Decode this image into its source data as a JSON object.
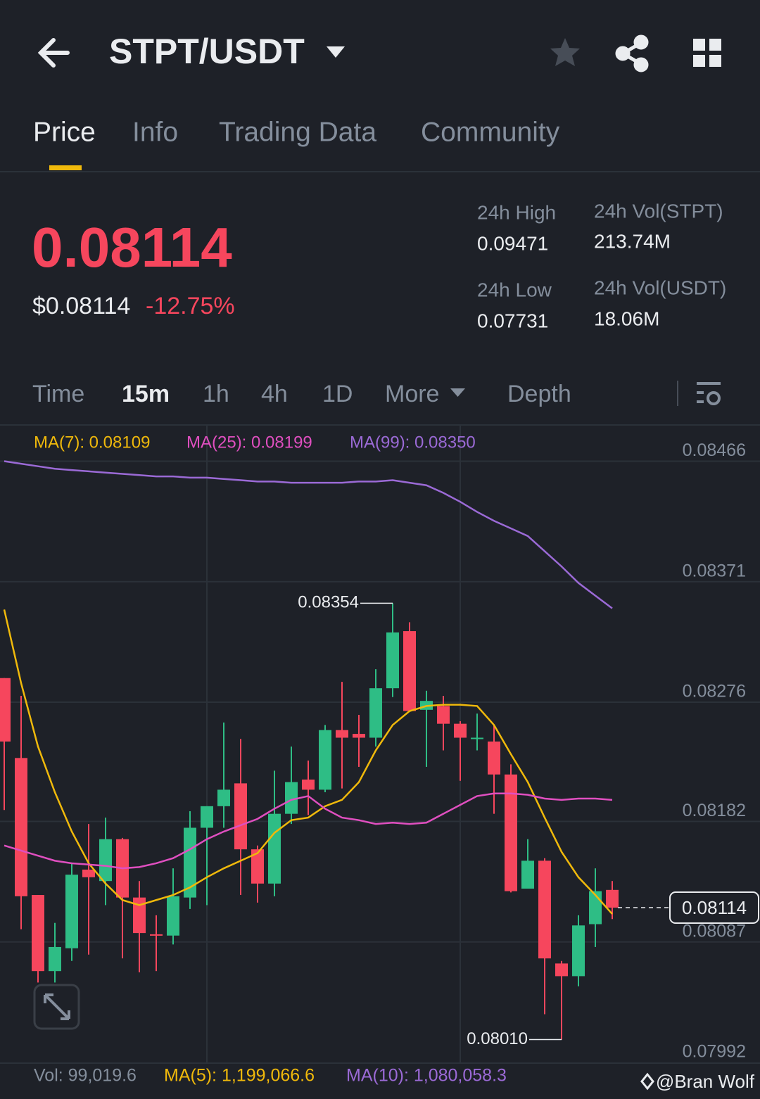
{
  "header": {
    "pair": "STPT/USDT"
  },
  "tabs": [
    "Price",
    "Info",
    "Trading Data",
    "Community"
  ],
  "price": {
    "last": "0.08114",
    "usd": "$0.08114",
    "change": "-12.75%"
  },
  "stats": [
    {
      "label": "24h High",
      "value": "0.09471"
    },
    {
      "label": "24h Vol(STPT)",
      "value": "213.74M"
    },
    {
      "label": "24h Low",
      "value": "0.07731"
    },
    {
      "label": "24h Vol(USDT)",
      "value": "18.06M"
    }
  ],
  "intervals": [
    "Time",
    "15m",
    "1h",
    "4h",
    "1D",
    "More",
    "Depth"
  ],
  "chart_data": {
    "type": "candlestick",
    "categories": [
      null,
      null,
      null,
      null,
      null,
      null,
      null,
      null,
      null,
      null,
      null,
      null,
      null,
      null,
      null,
      null,
      null,
      null,
      null,
      null,
      null,
      null,
      null,
      null,
      null,
      null,
      null,
      null,
      null,
      null,
      null,
      null,
      null,
      null,
      null,
      null,
      null
    ],
    "open": [
      0.08295,
      0.08232,
      0.08124,
      0.08064,
      0.08082,
      0.08144,
      0.08135,
      0.08168,
      0.08122,
      0.08093,
      0.08092,
      0.08122,
      0.08177,
      0.08194,
      0.08212,
      0.0816,
      0.08133,
      0.08188,
      0.08215,
      0.08207,
      0.08254,
      0.08251,
      0.08248,
      0.08287,
      0.08332,
      0.0827,
      0.08273,
      0.08259,
      0.08247,
      0.08245,
      0.08219,
      0.08129,
      0.08151,
      0.0807,
      0.0806,
      0.08101,
      0.08128
    ],
    "high": [
      0.08295,
      0.08281,
      0.08124,
      0.08102,
      0.08149,
      0.0818,
      0.08185,
      0.08169,
      0.08135,
      0.08108,
      0.08145,
      0.0819,
      0.08194,
      0.0826,
      0.08247,
      0.08163,
      0.08222,
      0.08241,
      0.0823,
      0.08258,
      0.08292,
      0.08266,
      0.08302,
      0.08354,
      0.08339,
      0.08285,
      0.08281,
      0.08261,
      0.08267,
      0.08258,
      0.08227,
      0.08168,
      0.08153,
      0.08072,
      0.08108,
      0.08145,
      0.08135
    ],
    "low": [
      0.08191,
      0.08097,
      0.08055,
      0.08055,
      0.08072,
      0.08077,
      0.08116,
      0.08074,
      0.08063,
      0.08064,
      0.08085,
      0.08113,
      0.08116,
      0.08177,
      0.08124,
      0.08118,
      0.08123,
      0.0818,
      0.08187,
      0.08205,
      0.08208,
      0.08225,
      0.08241,
      0.0828,
      0.08269,
      0.08225,
      0.08238,
      0.08214,
      0.08238,
      0.08188,
      0.08126,
      0.08129,
      0.0803,
      0.0801,
      0.08052,
      0.08083,
      0.08105
    ],
    "close": [
      0.08245,
      0.08123,
      0.08064,
      0.08083,
      0.0814,
      0.08138,
      0.08168,
      0.08122,
      0.08094,
      0.08092,
      0.08123,
      0.08177,
      0.08194,
      0.08207,
      0.0816,
      0.08133,
      0.08188,
      0.08213,
      0.08207,
      0.08254,
      0.08248,
      0.08248,
      0.08287,
      0.08331,
      0.08269,
      0.08277,
      0.08259,
      0.08248,
      0.08248,
      0.08219,
      0.08127,
      0.08151,
      0.08074,
      0.0806,
      0.081,
      0.08127,
      0.08114
    ],
    "up_color": "#2ebd85",
    "down_color": "#f6465d",
    "series": [
      {
        "name": "MA(7): 0.08109",
        "color": "#f0b90b",
        "values": [
          0.08349,
          0.08291,
          0.08241,
          0.08205,
          0.08174,
          0.08149,
          0.08133,
          0.0812,
          0.08116,
          0.0812,
          0.08124,
          0.0813,
          0.08138,
          0.08145,
          0.08151,
          0.08157,
          0.08173,
          0.08183,
          0.08185,
          0.08194,
          0.08199,
          0.08213,
          0.08238,
          0.08258,
          0.08269,
          0.08273,
          0.08274,
          0.08274,
          0.08273,
          0.08258,
          0.08235,
          0.08213,
          0.08185,
          0.08158,
          0.08138,
          0.08124,
          0.08109
        ]
      },
      {
        "name": "MA(25): 0.08199",
        "color": "#e04fc0",
        "values": [
          0.08163,
          0.08159,
          0.08155,
          0.08151,
          0.08149,
          0.08148,
          0.08147,
          0.08145,
          0.08146,
          0.08149,
          0.08153,
          0.0816,
          0.08168,
          0.08174,
          0.08179,
          0.08184,
          0.08192,
          0.08199,
          0.08202,
          0.08192,
          0.08185,
          0.08183,
          0.0818,
          0.08181,
          0.0818,
          0.08181,
          0.08188,
          0.08195,
          0.08202,
          0.08204,
          0.08204,
          0.08203,
          0.082,
          0.08199,
          0.082,
          0.082,
          0.08199
        ]
      },
      {
        "name": "MA(99): 0.08350",
        "color": "#9b6ad6",
        "values": [
          0.08466,
          0.08464,
          0.08462,
          0.0846,
          0.08459,
          0.08458,
          0.08457,
          0.08456,
          0.08455,
          0.08454,
          0.08454,
          0.08453,
          0.08453,
          0.08452,
          0.08451,
          0.0845,
          0.0845,
          0.08449,
          0.08449,
          0.08449,
          0.08449,
          0.0845,
          0.0845,
          0.08451,
          0.08449,
          0.08447,
          0.08441,
          0.08434,
          0.08426,
          0.08419,
          0.08413,
          0.08407,
          0.08395,
          0.08383,
          0.0837,
          0.0836,
          0.0835
        ]
      }
    ],
    "ylim": [
      0.07992,
      0.08494
    ],
    "yticks": [
      0.08466,
      0.08371,
      0.08276,
      0.08182,
      0.08087,
      0.07992
    ],
    "grid": true,
    "high_label": "0.08354",
    "low_label": "0.08010"
  },
  "volume": {
    "vol": "Vol: 99,019.6",
    "ma5": "MA(5): 1,199,066.6",
    "ma10": "MA(10): 1,080,058.3"
  },
  "watermark": "@Bran Wolf"
}
